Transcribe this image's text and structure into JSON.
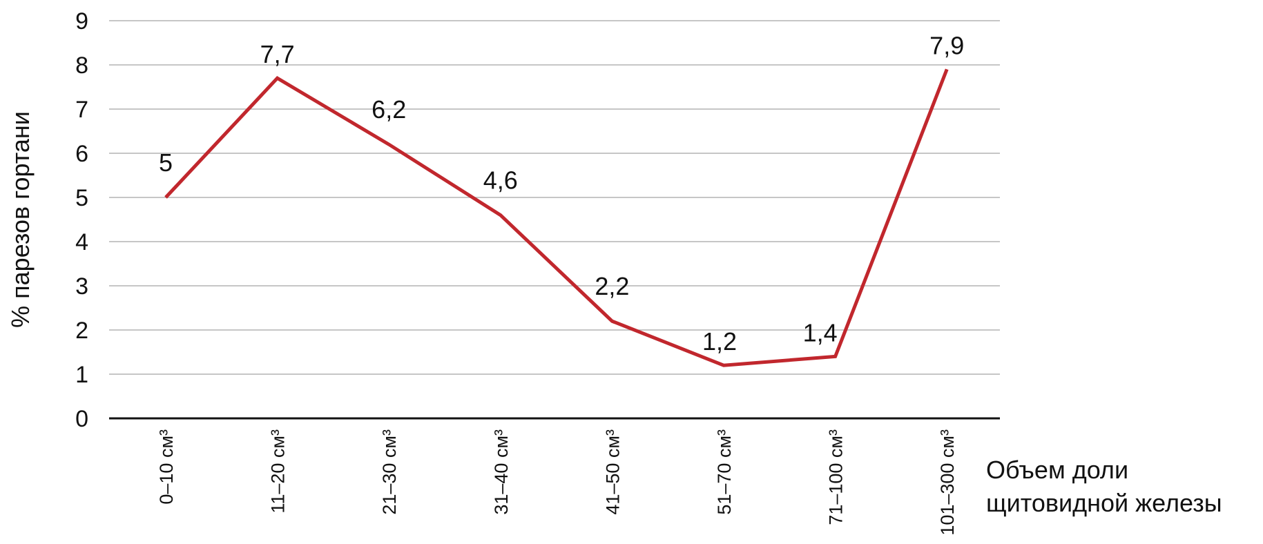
{
  "chart_data": {
    "type": "line",
    "categories": [
      "0–10 см³",
      "11–20 см³",
      "21–30 см³",
      "31–40 см³",
      "41–50 см³",
      "51–70 см³",
      "71–100 см³",
      "101–300 см³"
    ],
    "series": [
      {
        "values": [
          5,
          7.7,
          6.2,
          4.6,
          2.2,
          1.2,
          1.4,
          7.9
        ]
      }
    ],
    "data_labels": [
      "5",
      "7,7",
      "6,2",
      "4,6",
      "2,2",
      "1,2",
      "1,4",
      "7,9"
    ],
    "ylabel": "% парезов гортани",
    "xlabel": [
      "Объем доли",
      "щитовидной железы"
    ],
    "ylim": [
      0,
      9
    ],
    "yticks": [
      0,
      1,
      2,
      3,
      4,
      5,
      6,
      7,
      8,
      9
    ],
    "grid": true,
    "line_color": "#c1272d"
  }
}
